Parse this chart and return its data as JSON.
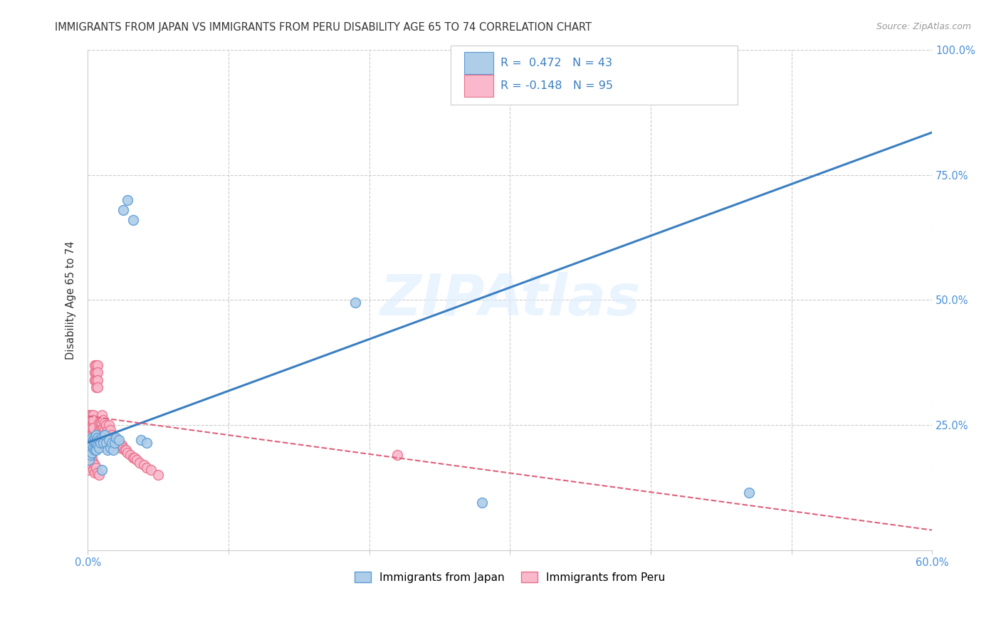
{
  "title": "IMMIGRANTS FROM JAPAN VS IMMIGRANTS FROM PERU DISABILITY AGE 65 TO 74 CORRELATION CHART",
  "source": "Source: ZipAtlas.com",
  "xlim": [
    0.0,
    0.6
  ],
  "ylim": [
    0.0,
    1.0
  ],
  "japan_color": "#aecde8",
  "peru_color": "#f9b8cb",
  "japan_edge_color": "#5b9bd5",
  "peru_edge_color": "#e8708a",
  "japan_line_color": "#3a7fc1",
  "peru_line_color": "#e0607a",
  "bottom_legend_japan": "Immigrants from Japan",
  "bottom_legend_peru": "Immigrants from Peru",
  "watermark": "ZIPAtlas",
  "japan_line_y0": 0.215,
  "japan_line_y1": 0.835,
  "peru_line_y0": 0.268,
  "peru_line_y1": 0.04,
  "japan_scatter_x": [
    0.001,
    0.001,
    0.001,
    0.002,
    0.002,
    0.002,
    0.003,
    0.003,
    0.003,
    0.004,
    0.004,
    0.005,
    0.005,
    0.005,
    0.006,
    0.006,
    0.006,
    0.007,
    0.007,
    0.008,
    0.008,
    0.009,
    0.01,
    0.01,
    0.011,
    0.012,
    0.013,
    0.014,
    0.015,
    0.016,
    0.017,
    0.018,
    0.019,
    0.02,
    0.022,
    0.025,
    0.028,
    0.032,
    0.038,
    0.042,
    0.19,
    0.28,
    0.47
  ],
  "japan_scatter_y": [
    0.22,
    0.195,
    0.18,
    0.215,
    0.205,
    0.19,
    0.225,
    0.21,
    0.195,
    0.22,
    0.205,
    0.225,
    0.215,
    0.2,
    0.23,
    0.215,
    0.2,
    0.225,
    0.21,
    0.22,
    0.205,
    0.215,
    0.225,
    0.16,
    0.215,
    0.23,
    0.215,
    0.2,
    0.22,
    0.205,
    0.215,
    0.2,
    0.215,
    0.225,
    0.22,
    0.68,
    0.7,
    0.66,
    0.22,
    0.215,
    0.495,
    0.095,
    0.115
  ],
  "peru_scatter_x": [
    0.0005,
    0.0005,
    0.001,
    0.001,
    0.001,
    0.001,
    0.001,
    0.001,
    0.001,
    0.002,
    0.002,
    0.002,
    0.002,
    0.002,
    0.002,
    0.002,
    0.002,
    0.003,
    0.003,
    0.003,
    0.003,
    0.003,
    0.003,
    0.004,
    0.004,
    0.004,
    0.004,
    0.004,
    0.005,
    0.005,
    0.005,
    0.005,
    0.005,
    0.006,
    0.006,
    0.006,
    0.006,
    0.007,
    0.007,
    0.007,
    0.007,
    0.008,
    0.008,
    0.008,
    0.009,
    0.009,
    0.01,
    0.01,
    0.01,
    0.011,
    0.011,
    0.012,
    0.012,
    0.013,
    0.013,
    0.014,
    0.015,
    0.015,
    0.016,
    0.017,
    0.018,
    0.019,
    0.02,
    0.021,
    0.022,
    0.023,
    0.024,
    0.025,
    0.026,
    0.027,
    0.028,
    0.03,
    0.032,
    0.033,
    0.035,
    0.037,
    0.04,
    0.042,
    0.045,
    0.05,
    0.001,
    0.001,
    0.001,
    0.002,
    0.002,
    0.003,
    0.003,
    0.004,
    0.004,
    0.005,
    0.005,
    0.006,
    0.007,
    0.008,
    0.22
  ],
  "peru_scatter_y": [
    0.25,
    0.235,
    0.27,
    0.255,
    0.24,
    0.26,
    0.245,
    0.23,
    0.265,
    0.27,
    0.255,
    0.24,
    0.26,
    0.245,
    0.23,
    0.265,
    0.25,
    0.27,
    0.255,
    0.24,
    0.26,
    0.245,
    0.23,
    0.27,
    0.255,
    0.24,
    0.26,
    0.245,
    0.37,
    0.355,
    0.34,
    0.355,
    0.34,
    0.37,
    0.355,
    0.34,
    0.325,
    0.37,
    0.355,
    0.34,
    0.325,
    0.255,
    0.24,
    0.225,
    0.255,
    0.24,
    0.27,
    0.255,
    0.24,
    0.26,
    0.245,
    0.255,
    0.24,
    0.25,
    0.235,
    0.24,
    0.25,
    0.235,
    0.24,
    0.23,
    0.225,
    0.22,
    0.215,
    0.215,
    0.21,
    0.205,
    0.21,
    0.205,
    0.2,
    0.2,
    0.195,
    0.19,
    0.185,
    0.185,
    0.18,
    0.175,
    0.17,
    0.165,
    0.16,
    0.15,
    0.19,
    0.175,
    0.16,
    0.195,
    0.18,
    0.185,
    0.17,
    0.175,
    0.16,
    0.17,
    0.155,
    0.165,
    0.155,
    0.15,
    0.19
  ]
}
